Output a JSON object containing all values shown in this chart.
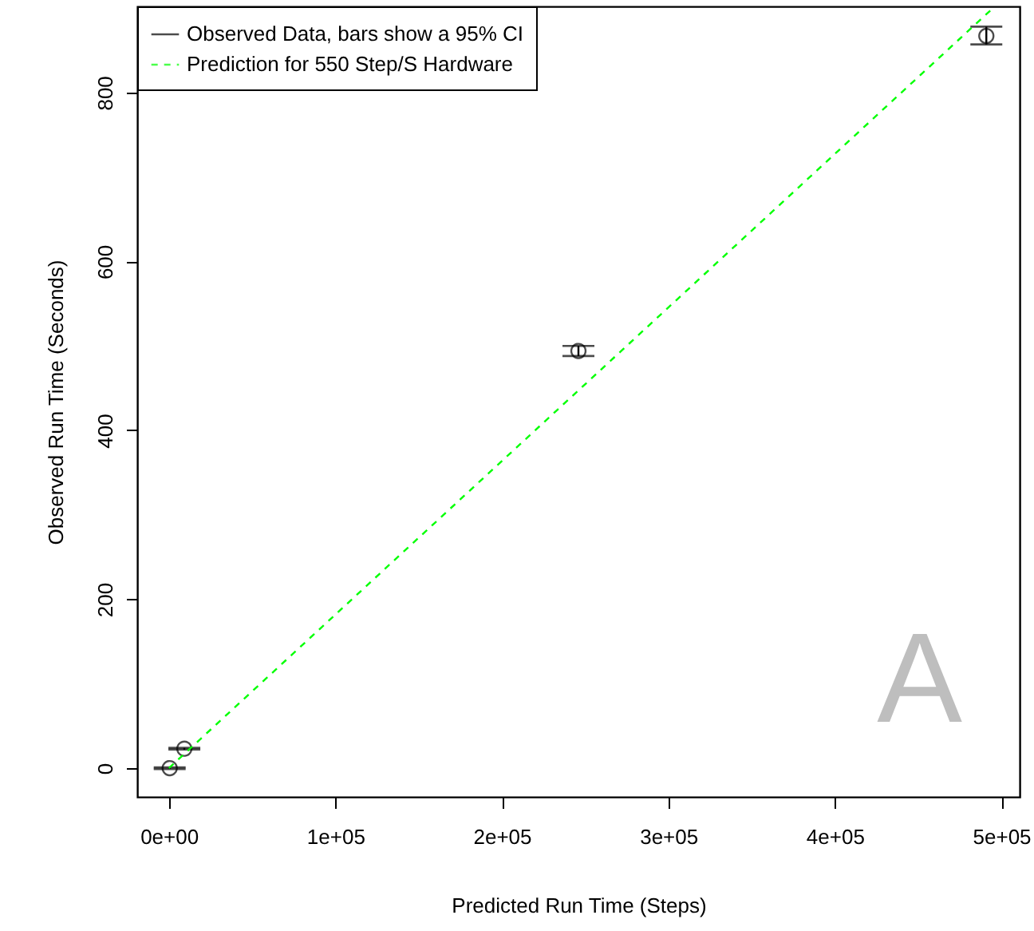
{
  "chart_data": {
    "type": "scatter",
    "xlabel": "Predicted Run Time (Steps)",
    "ylabel": "Observed Run Time (Seconds)",
    "xlim": [
      -19000,
      511000
    ],
    "ylim": [
      -34,
      902
    ],
    "xticks": [
      {
        "value": 0,
        "label": "0e+00"
      },
      {
        "value": 100000,
        "label": "1e+05"
      },
      {
        "value": 200000,
        "label": "2e+05"
      },
      {
        "value": 300000,
        "label": "3e+05"
      },
      {
        "value": 400000,
        "label": "4e+05"
      },
      {
        "value": 500000,
        "label": "5e+05"
      }
    ],
    "yticks": [
      0,
      200,
      400,
      600,
      800
    ],
    "grid": false,
    "legend": "top left",
    "marker": "circle",
    "annotations": [
      "A"
    ],
    "series": [
      {
        "name": "Observed Data, bars show a 95% CI",
        "color": "#000000",
        "x": [
          500,
          9300,
          246000,
          491000
        ],
        "values": [
          0,
          23,
          494,
          867
        ],
        "errors": [
          1,
          1,
          [
            488,
            500
          ],
          [
            857,
            878
          ]
        ]
      },
      {
        "name": "Prediction for 550 Step/S Hardware",
        "color": "#00ff00",
        "type": "line",
        "line_style": "dashed",
        "marker": "none",
        "x": [
          0,
          495000
        ],
        "values": [
          0,
          900
        ]
      }
    ]
  }
}
